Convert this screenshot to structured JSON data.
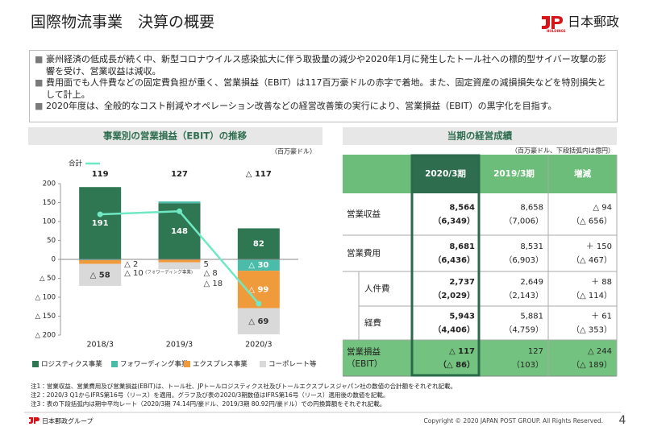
{
  "header": {
    "title": "国際物流事業　決算の概要",
    "logo_text": "日本郵政",
    "logo_sub": "HOLDINGS"
  },
  "bullets": [
    "豪州経済の低成長が続く中、新型コロナウイルス感染拡大に伴う取扱量の減少や2020年1月に発生したトール社への標的型サイバー攻撃の影響を受け、営業収益は減収。",
    "費用面でも人件費などの固定費負担が重く、営業損益（EBIT）は117百万豪ドルの赤字で着地。また、固定資産の減損損失などを特別損失として計上。",
    "2020年度は、全般的なコスト削減やオペレーション改善などの経営改善策の実行により、営業損益（EBIT）の黒字化を目指す。"
  ],
  "chart_data": {
    "type": "stacked_bar",
    "title": "事業別の営業損益（EBIT）の推移",
    "unit_label": "（百万豪ドル）",
    "categories": [
      "2018/3",
      "2019/3",
      "2020/3"
    ],
    "series": [
      {
        "name": "ロジスティクス事業",
        "color": "#2f7653",
        "values": [
          191,
          148,
          82
        ]
      },
      {
        "name": "フォワーディング事業",
        "color": "#4cbcaa",
        "values": [
          -2,
          5,
          -30
        ],
        "value_labels": [
          "△ 2",
          "5",
          "△ 30"
        ]
      },
      {
        "name": "エクスプレス事業",
        "color": "#ef9b3c",
        "values": [
          -10,
          -8,
          -99
        ],
        "value_labels": [
          "△ 10",
          "△ 8",
          "△ 99"
        ]
      },
      {
        "name": "コーポレート等",
        "color": "#d9d9d9",
        "values": [
          -58,
          -18,
          -69
        ],
        "value_labels": [
          "△ 58",
          "△ 18",
          "△ 69"
        ]
      }
    ],
    "line": {
      "name": "合計",
      "color": "#6fe9c4",
      "values": [
        119,
        127,
        -117
      ],
      "value_labels": [
        "119",
        "127",
        "△ 117"
      ]
    },
    "annotations": [
      "(フォワーディング事業)"
    ],
    "ylim": [
      -200,
      200
    ],
    "yticks": [
      200,
      150,
      100,
      50,
      0,
      {
        "value": -50,
        "label": "△ 50"
      },
      {
        "value": -100,
        "label": "△ 100"
      },
      {
        "value": -150,
        "label": "△ 150"
      },
      {
        "value": -200,
        "label": "△ 200"
      }
    ]
  },
  "table": {
    "title": "当期の経営成績",
    "unit": "（百万豪ドル、下段括弧内は億円）",
    "header": [
      "2020/3期",
      "2019/3期",
      "増減"
    ],
    "rows": [
      {
        "label": [
          "営業収益"
        ],
        "cells": [
          [
            "8,564",
            "（6,349）"
          ],
          [
            "8,658",
            "（7,006）"
          ],
          [
            "△ 94",
            "（△ 656）"
          ]
        ]
      },
      {
        "label": [
          "営業費用"
        ],
        "cells": [
          [
            "8,681",
            "（6,436）"
          ],
          [
            "8,531",
            "（6,903）"
          ],
          [
            "＋ 150",
            "（△ 467）"
          ]
        ]
      },
      {
        "label": [
          "人件費"
        ],
        "cells": [
          [
            "2,737",
            "（2,029）"
          ],
          [
            "2,649",
            "（2,143）"
          ],
          [
            "＋ 88",
            "（△ 114）"
          ]
        ]
      },
      {
        "label": [
          "経費"
        ],
        "cells": [
          [
            "5,943",
            "（4,406）"
          ],
          [
            "5,881",
            "（4,759）"
          ],
          [
            "＋ 61",
            "（△ 353）"
          ]
        ]
      },
      {
        "label": [
          "営業損益",
          "（EBIT）"
        ],
        "cells": [
          [
            "△ 117",
            "（△ 86）"
          ],
          [
            "127",
            "（103）"
          ],
          [
            "△ 244",
            "（△ 189）"
          ]
        ]
      }
    ]
  },
  "notes": [
    "注1：営業収益、営業費用及び営業損益(EBIT)は、トール社、JPトールロジスティクス社及びトールエクスプレスジャパン社の数値の合計額をそれぞれ記載。",
    "注2：2020/3 Q1からIFRS第16号（リース）を適用。グラフ及び表の2020/3期数値はIFRS第16号（リース）適用後の数値を記載。",
    "注3：表の下段括弧内は期中平均レート（2020/3期 74.14円/豪ドル、2019/3期 80.92円/豪ドル）での円換算額をそれぞれ記載。"
  ],
  "footer": {
    "group": "日本郵政グループ",
    "copyright": "Copyright © 2020 JAPAN POST GROUP. All Rights Reserved.",
    "page": "4"
  }
}
